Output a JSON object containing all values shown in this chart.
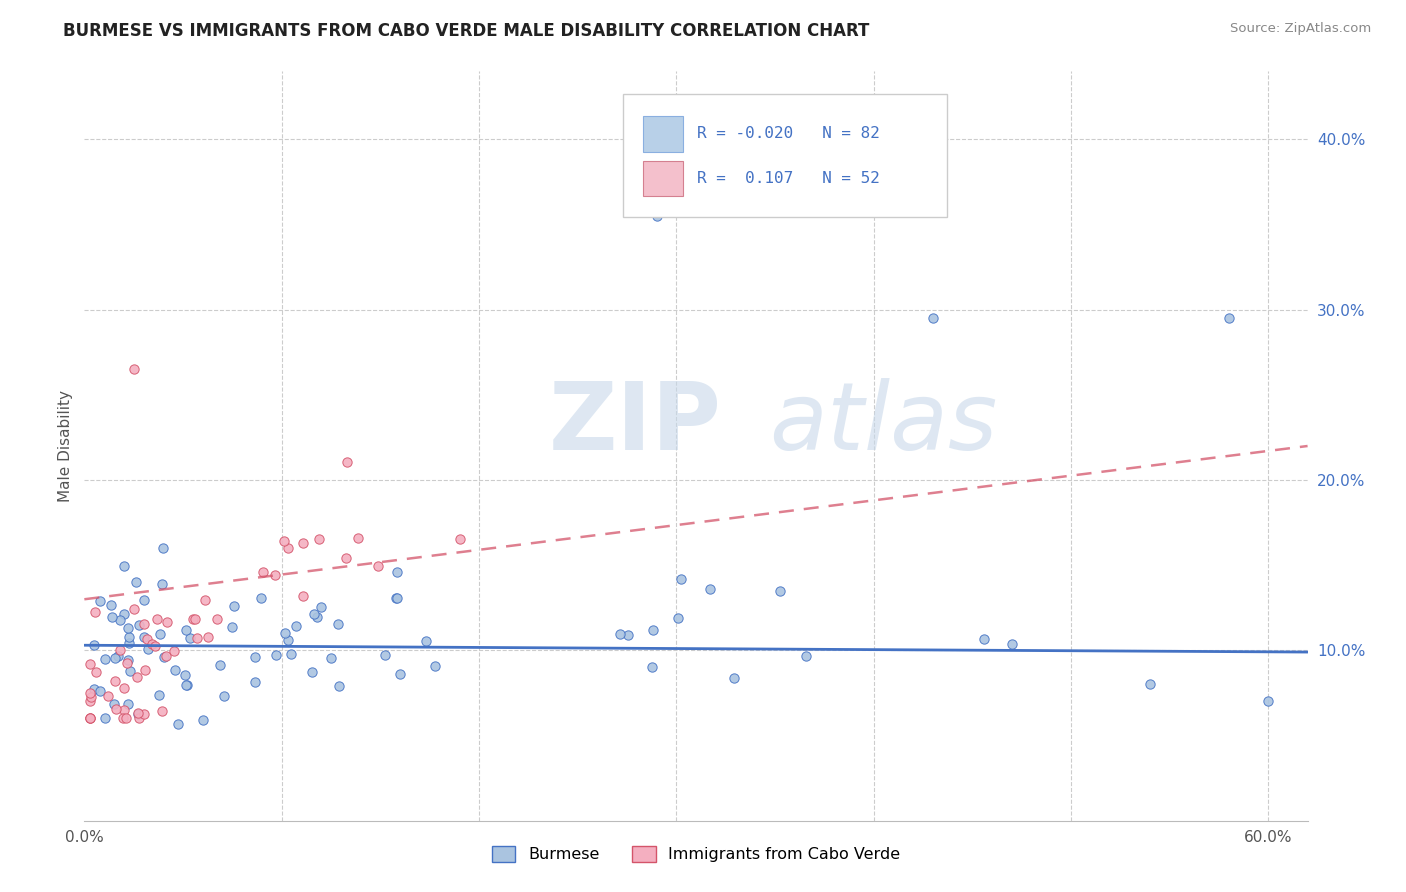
{
  "title": "BURMESE VS IMMIGRANTS FROM CABO VERDE MALE DISABILITY CORRELATION CHART",
  "source": "Source: ZipAtlas.com",
  "ylabel": "Male Disability",
  "xlabel_burmese": "Burmese",
  "xlabel_cabo": "Immigrants from Cabo Verde",
  "xlim": [
    0.0,
    0.62
  ],
  "ylim": [
    0.0,
    0.44
  ],
  "xticks": [
    0.0,
    0.1,
    0.2,
    0.3,
    0.4,
    0.5,
    0.6
  ],
  "xticklabels": [
    "0.0%",
    "",
    "",
    "",
    "",
    "",
    "60.0%"
  ],
  "yticks_right": [
    0.1,
    0.2,
    0.3,
    0.4
  ],
  "ytick_labels_right": [
    "10.0%",
    "20.0%",
    "30.0%",
    "40.0%"
  ],
  "r_burmese": -0.02,
  "n_burmese": 82,
  "r_cabo": 0.107,
  "n_cabo": 52,
  "color_burmese": "#aac4e0",
  "color_cabo": "#f4afc0",
  "line_color_burmese": "#4472c4",
  "line_color_cabo": "#d4546a",
  "legend_box_color_burmese": "#b8d0e8",
  "legend_box_color_cabo": "#f4c0cc",
  "legend_text_color": "#4472c4",
  "watermark_zip": "ZIP",
  "watermark_atlas": "atlas",
  "grid_color": "#cccccc",
  "burmese_trend_x": [
    0.0,
    0.62
  ],
  "burmese_trend_y": [
    0.103,
    0.099
  ],
  "cabo_trend_x": [
    0.0,
    0.62
  ],
  "cabo_trend_y": [
    0.13,
    0.22
  ]
}
